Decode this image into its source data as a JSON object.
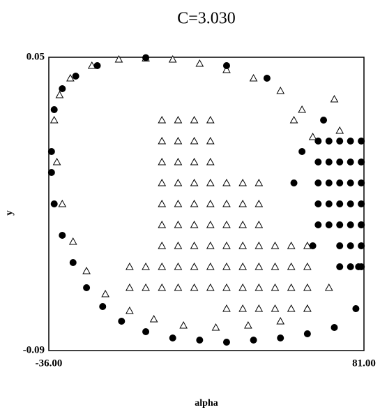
{
  "chart_data": {
    "type": "scatter",
    "title": "C=3.030",
    "x_label": "alpha",
    "y_label": "y",
    "xlim": [
      -36,
      81
    ],
    "ylim": [
      -0.09,
      0.05
    ],
    "xticks": [
      {
        "value": -36,
        "label": "-36.00"
      },
      {
        "value": 81,
        "label": "81.00"
      }
    ],
    "yticks": [
      0.05,
      -0.09
    ],
    "series": [
      {
        "marker": "triangle",
        "color": "#000000",
        "x": [
          -34,
          -32,
          -28,
          -20,
          -10,
          0,
          10,
          20,
          30,
          40,
          50,
          58,
          -33,
          -31,
          -27,
          -22,
          -15,
          -6,
          3,
          14,
          26,
          38,
          50,
          60,
          68,
          6,
          6,
          6,
          6,
          6,
          6,
          6,
          6,
          6,
          12,
          12,
          12,
          12,
          12,
          12,
          12,
          12,
          12,
          18,
          18,
          18,
          18,
          18,
          18,
          18,
          18,
          18,
          24,
          24,
          24,
          24,
          24,
          24,
          24,
          24,
          24,
          30,
          30,
          30,
          30,
          30,
          30,
          30,
          36,
          36,
          36,
          36,
          36,
          36,
          36,
          42,
          42,
          42,
          42,
          42,
          42,
          42,
          48,
          48,
          48,
          48,
          54,
          54,
          54,
          54,
          60,
          60,
          60,
          60,
          0,
          0,
          -6,
          -6,
          55,
          62,
          70,
          72
        ],
        "values": [
          0.02,
          0.032,
          0.04,
          0.046,
          0.049,
          0.0495,
          0.049,
          0.047,
          0.044,
          0.04,
          0.034,
          0.025,
          0,
          -0.02,
          -0.038,
          -0.052,
          -0.063,
          -0.071,
          -0.075,
          -0.078,
          -0.079,
          -0.078,
          -0.076,
          -0.07,
          -0.06,
          0.02,
          0.01,
          0,
          -0.01,
          -0.02,
          -0.03,
          -0.04,
          -0.05,
          -0.06,
          0.02,
          0.01,
          0,
          -0.01,
          -0.02,
          -0.03,
          -0.04,
          -0.05,
          -0.06,
          0.02,
          0.01,
          0,
          -0.01,
          -0.02,
          -0.03,
          -0.04,
          -0.05,
          -0.06,
          0.02,
          0.01,
          0,
          -0.01,
          -0.02,
          -0.03,
          -0.04,
          -0.05,
          -0.06,
          -0.01,
          -0.02,
          -0.03,
          -0.04,
          -0.05,
          -0.06,
          -0.07,
          -0.01,
          -0.02,
          -0.03,
          -0.04,
          -0.05,
          -0.06,
          -0.07,
          -0.01,
          -0.02,
          -0.03,
          -0.04,
          -0.05,
          -0.06,
          -0.07,
          -0.04,
          -0.05,
          -0.06,
          -0.07,
          -0.04,
          -0.05,
          -0.06,
          -0.07,
          -0.04,
          -0.05,
          -0.06,
          -0.07,
          -0.05,
          -0.06,
          -0.05,
          -0.06,
          0.02,
          0.012,
          0.03,
          0.015
        ]
      },
      {
        "marker": "circle",
        "color": "#000000",
        "x": [
          -34,
          -31,
          -26,
          -18,
          0,
          30,
          45,
          -35,
          -35,
          -34,
          -31,
          -27,
          -22,
          -16,
          -9,
          0,
          10,
          20,
          30,
          40,
          50,
          60,
          70,
          78,
          79,
          80,
          64,
          64,
          64,
          64,
          64,
          68,
          68,
          68,
          68,
          68,
          72,
          72,
          72,
          72,
          72,
          76,
          76,
          76,
          76,
          76,
          80,
          80,
          80,
          80,
          80,
          72,
          72,
          76,
          76,
          80,
          80,
          58,
          55,
          62,
          66
        ],
        "values": [
          0.025,
          0.035,
          0.041,
          0.046,
          0.0498,
          0.046,
          0.04,
          0.005,
          -0.005,
          -0.02,
          -0.035,
          -0.048,
          -0.06,
          -0.069,
          -0.076,
          -0.081,
          -0.084,
          -0.085,
          -0.086,
          -0.085,
          -0.084,
          -0.082,
          -0.079,
          -0.07,
          -0.05,
          -0.03,
          0.01,
          0,
          -0.01,
          -0.02,
          -0.03,
          0.01,
          0,
          -0.01,
          -0.02,
          -0.03,
          0.01,
          0,
          -0.01,
          -0.02,
          -0.03,
          0.01,
          0,
          -0.01,
          -0.02,
          -0.03,
          0.01,
          0,
          -0.01,
          -0.02,
          -0.03,
          -0.04,
          -0.05,
          -0.04,
          -0.05,
          -0.04,
          -0.05,
          0.005,
          -0.01,
          -0.04,
          0.02
        ]
      }
    ]
  }
}
